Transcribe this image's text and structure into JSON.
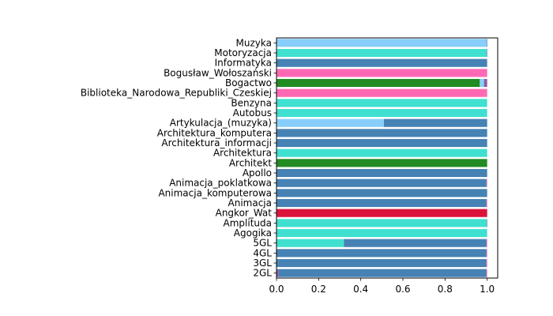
{
  "chart_data": {
    "type": "bar",
    "orientation": "horizontal",
    "stacked": true,
    "title": "",
    "xlabel": "",
    "ylabel": "",
    "xlim": [
      0,
      1.05
    ],
    "xticks": [
      0.0,
      0.2,
      0.4,
      0.6,
      0.8,
      1.0
    ],
    "xtick_labels": [
      "0.0",
      "0.2",
      "0.4",
      "0.6",
      "0.8",
      "1.0"
    ],
    "grid": false,
    "legend": null,
    "categories": [
      "2GL",
      "3GL",
      "4GL",
      "5GL",
      "Agogika",
      "Amplituda",
      "Angkor_Wat",
      "Animacja",
      "Animacja_komputerowa",
      "Animacja_poklatkowa",
      "Apollo",
      "Architekt",
      "Architektura",
      "Architektura_informacji",
      "Architektura_komputera",
      "Artykulacja_(muzyka)",
      "Autobus",
      "Benzyna",
      "Biblioteka_Narodowa_Republiki_Czeskiej",
      "Bogactwo",
      "Bogusław_Wołoszański",
      "Informatyka",
      "Motoryzacja",
      "Muzyka"
    ],
    "segments": [
      [
        {
          "value": 0.01,
          "color": "#8b5e9e"
        },
        {
          "value": 0.987,
          "color": "#4682b4"
        },
        {
          "value": 0.003,
          "color": "#ff69b4"
        }
      ],
      [
        {
          "value": 0.008,
          "color": "#4682b4"
        },
        {
          "value": 0.989,
          "color": "#4682b4"
        },
        {
          "value": 0.003,
          "color": "#ff69b4"
        }
      ],
      [
        {
          "value": 0.997,
          "color": "#4682b4"
        },
        {
          "value": 0.003,
          "color": "#ff69b4"
        }
      ],
      [
        {
          "value": 0.32,
          "color": "#40e0d0"
        },
        {
          "value": 0.677,
          "color": "#4682b4"
        },
        {
          "value": 0.003,
          "color": "#ff69b4"
        }
      ],
      [
        {
          "value": 1.0,
          "color": "#40e0d0"
        }
      ],
      [
        {
          "value": 0.997,
          "color": "#40e0d0"
        },
        {
          "value": 0.003,
          "color": "#4682b4"
        }
      ],
      [
        {
          "value": 1.0,
          "color": "#dc143c"
        }
      ],
      [
        {
          "value": 0.997,
          "color": "#4682b4"
        },
        {
          "value": 0.003,
          "color": "#ff69b4"
        }
      ],
      [
        {
          "value": 1.0,
          "color": "#4682b4"
        }
      ],
      [
        {
          "value": 0.997,
          "color": "#4682b4"
        },
        {
          "value": 0.003,
          "color": "#ff69b4"
        }
      ],
      [
        {
          "value": 1.0,
          "color": "#4682b4"
        }
      ],
      [
        {
          "value": 1.0,
          "color": "#228b22"
        }
      ],
      [
        {
          "value": 1.0,
          "color": "#40e0d0"
        }
      ],
      [
        {
          "value": 1.0,
          "color": "#4682b4"
        }
      ],
      [
        {
          "value": 1.0,
          "color": "#4682b4"
        }
      ],
      [
        {
          "value": 0.51,
          "color": "#87cefa"
        },
        {
          "value": 0.49,
          "color": "#4682b4"
        }
      ],
      [
        {
          "value": 1.0,
          "color": "#40e0d0"
        }
      ],
      [
        {
          "value": 1.0,
          "color": "#40e0d0"
        }
      ],
      [
        {
          "value": 1.0,
          "color": "#ff69b4"
        }
      ],
      [
        {
          "value": 0.965,
          "color": "#228b22"
        },
        {
          "value": 0.02,
          "color": "#87cefa"
        },
        {
          "value": 0.015,
          "color": "#8b5e9e"
        }
      ],
      [
        {
          "value": 1.0,
          "color": "#ff69b4"
        }
      ],
      [
        {
          "value": 1.0,
          "color": "#4682b4"
        }
      ],
      [
        {
          "value": 0.997,
          "color": "#40e0d0"
        },
        {
          "value": 0.003,
          "color": "#4682b4"
        }
      ],
      [
        {
          "value": 0.997,
          "color": "#87cefa"
        },
        {
          "value": 0.003,
          "color": "#4682b4"
        }
      ]
    ]
  }
}
